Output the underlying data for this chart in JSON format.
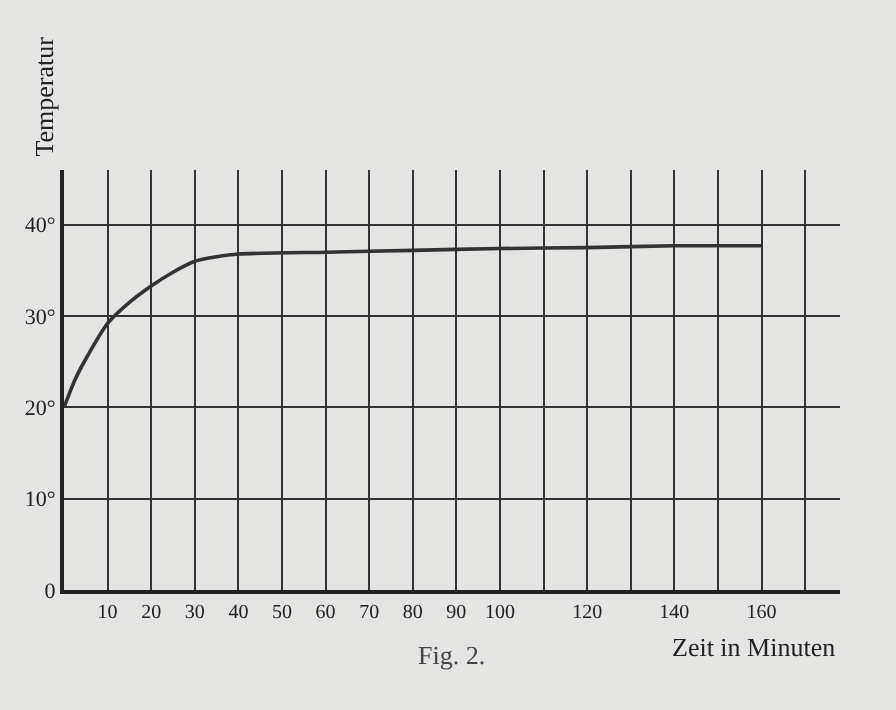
{
  "chart_data": {
    "type": "line",
    "xlabel": "Zeit in Minuten",
    "ylabel": "Temperatur",
    "annotations": [
      "Fig. 2."
    ],
    "x": [
      0,
      2.5,
      5,
      10,
      15,
      20,
      25,
      30,
      35,
      40,
      60,
      80,
      100,
      120,
      140,
      160
    ],
    "series": [
      {
        "color": "#333333",
        "values": [
          20,
          23,
          25.3,
          29.2,
          31.5,
          33.3,
          34.8,
          36.0,
          36.5,
          36.8,
          37.0,
          37.2,
          37.4,
          37.5,
          37.7,
          37.7
        ]
      }
    ],
    "xlim": [
      0,
      178
    ],
    "ylim": [
      0,
      46
    ],
    "xticks": [
      10,
      20,
      30,
      40,
      50,
      60,
      70,
      80,
      90,
      100,
      {
        "value": 110,
        "label": null
      },
      120,
      {
        "value": 130,
        "label": null
      },
      140,
      {
        "value": 150,
        "label": null
      },
      160,
      {
        "value": 170,
        "label": null
      }
    ],
    "yticks": [
      0,
      {
        "value": 10,
        "label": "10°"
      },
      {
        "value": 20,
        "label": "20°"
      },
      {
        "value": 30,
        "label": "30°"
      },
      {
        "value": 40,
        "label": "40°"
      }
    ],
    "grid": true,
    "marker": "none",
    "line_style": "solid"
  }
}
